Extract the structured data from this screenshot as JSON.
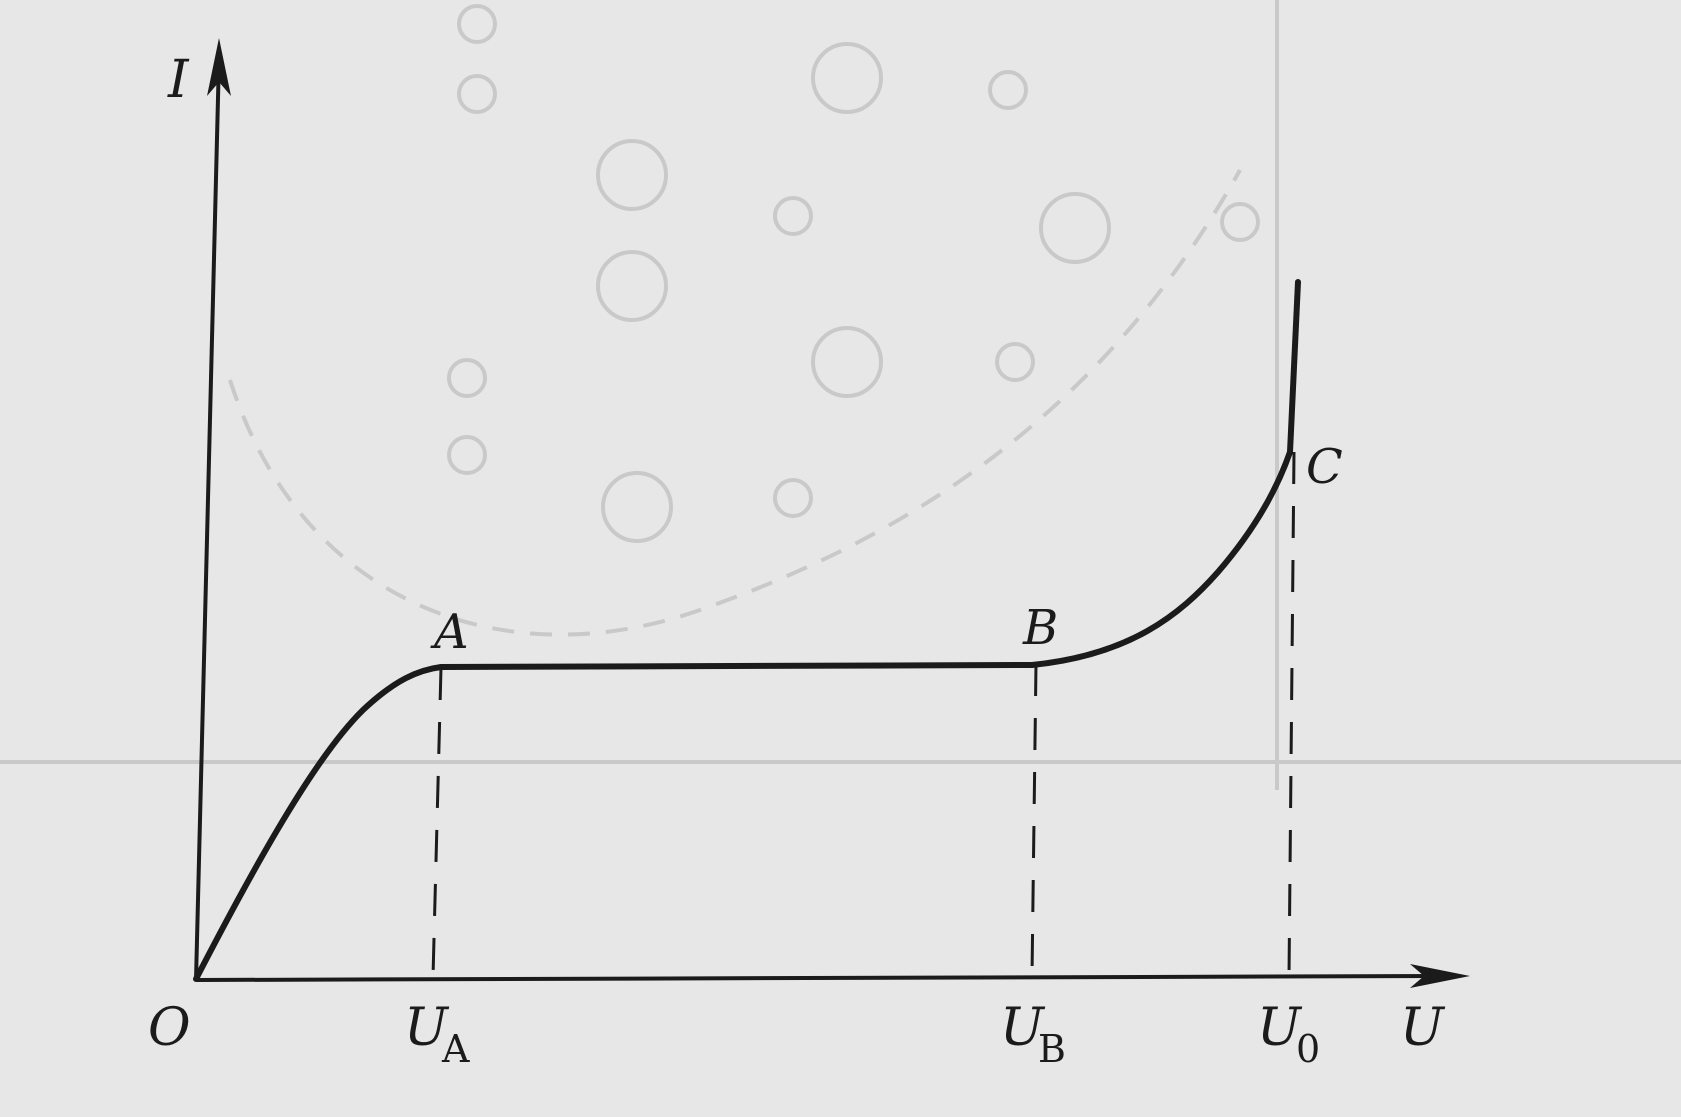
{
  "chart_data": {
    "type": "line",
    "axes": {
      "y_label": "I",
      "x_label": "U",
      "origin_label": "O",
      "x_ticks": [
        {
          "base": "U",
          "sub": "A"
        },
        {
          "base": "U",
          "sub": "B"
        },
        {
          "base": "U",
          "sub": "0"
        }
      ]
    },
    "points": [
      {
        "label": "A"
      },
      {
        "label": "B"
      },
      {
        "label": "C"
      }
    ],
    "series": [
      {
        "segments": [
          "rising curve from O to A",
          "horizontal plateau from A to B",
          "steeply rising curve from B to C",
          "vertical rise at U0 above C"
        ]
      }
    ],
    "grid": false,
    "legend": false
  },
  "style": {
    "background": "#e7e7e7",
    "ink": "#1b1b1b",
    "faint": "#c9c9c9"
  }
}
